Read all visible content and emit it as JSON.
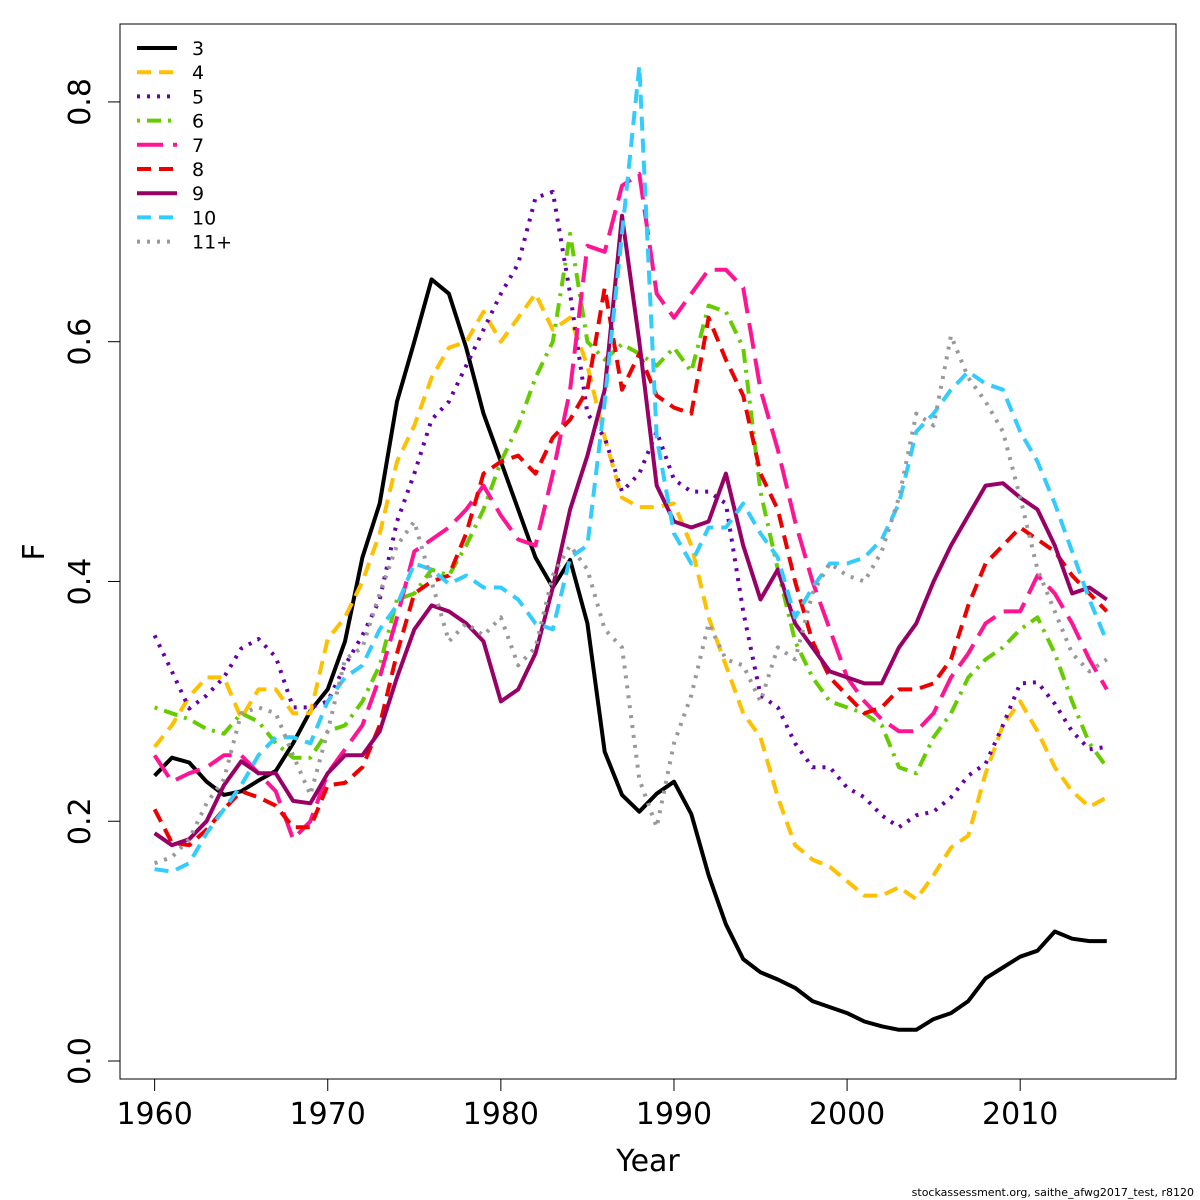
{
  "chart_data": {
    "type": "line",
    "xlabel": "Year",
    "ylabel": "F",
    "xlim": [
      1958,
      2019
    ],
    "ylim": [
      -0.015,
      0.865
    ],
    "x_ticks": [
      1960,
      1970,
      1980,
      1990,
      2000,
      2010
    ],
    "y_ticks": [
      0.0,
      0.2,
      0.4,
      0.6,
      0.8
    ],
    "x_tick_labels": [
      "1960",
      "1970",
      "1980",
      "1990",
      "2000",
      "2010"
    ],
    "y_tick_labels": [
      "0.0",
      "0.2",
      "0.4",
      "0.6",
      "0.8"
    ],
    "legend_position": "top-left",
    "grid": false,
    "x": [
      1960,
      1961,
      1962,
      1963,
      1964,
      1965,
      1966,
      1967,
      1968,
      1969,
      1970,
      1971,
      1972,
      1973,
      1974,
      1975,
      1976,
      1977,
      1978,
      1979,
      1980,
      1981,
      1982,
      1983,
      1984,
      1985,
      1986,
      1987,
      1988,
      1989,
      1990,
      1991,
      1992,
      1993,
      1994,
      1995,
      1996,
      1997,
      1998,
      1999,
      2000,
      2001,
      2002,
      2003,
      2004,
      2005,
      2006,
      2007,
      2008,
      2009,
      2010,
      2011,
      2012,
      2013,
      2014,
      2015
    ],
    "series": [
      {
        "name": "3",
        "color": "#000000",
        "dash": "solid",
        "values": [
          0.238,
          0.253,
          0.249,
          0.233,
          0.222,
          0.225,
          0.234,
          0.242,
          0.265,
          0.292,
          0.31,
          0.35,
          0.42,
          0.465,
          0.55,
          0.6,
          0.652,
          0.64,
          0.595,
          0.54,
          0.5,
          0.46,
          0.42,
          0.395,
          0.418,
          0.365,
          0.258,
          0.222,
          0.208,
          0.223,
          0.233,
          0.206,
          0.155,
          0.114,
          0.085,
          0.074,
          0.068,
          0.061,
          0.05,
          0.045,
          0.04,
          0.033,
          0.029,
          0.026,
          0.026,
          0.035,
          0.04,
          0.05,
          0.069,
          0.078,
          0.087,
          0.092,
          0.108,
          0.102,
          0.1,
          0.1
        ]
      },
      {
        "name": "4",
        "color": "#FFC000",
        "dash": "dashed",
        "values": [
          0.262,
          0.28,
          0.304,
          0.32,
          0.32,
          0.286,
          0.31,
          0.31,
          0.29,
          0.29,
          0.352,
          0.37,
          0.4,
          0.44,
          0.5,
          0.53,
          0.57,
          0.595,
          0.6,
          0.625,
          0.6,
          0.62,
          0.64,
          0.61,
          0.62,
          0.58,
          0.52,
          0.47,
          0.462,
          0.462,
          0.465,
          0.43,
          0.37,
          0.33,
          0.29,
          0.27,
          0.22,
          0.18,
          0.168,
          0.162,
          0.15,
          0.138,
          0.138,
          0.145,
          0.135,
          0.155,
          0.178,
          0.188,
          0.24,
          0.28,
          0.3,
          0.275,
          0.245,
          0.225,
          0.212,
          0.22
        ]
      },
      {
        "name": "5",
        "color": "#6600AA",
        "dash": "dotted",
        "values": [
          0.355,
          0.325,
          0.294,
          0.305,
          0.32,
          0.344,
          0.352,
          0.337,
          0.295,
          0.295,
          0.3,
          0.33,
          0.355,
          0.385,
          0.45,
          0.49,
          0.535,
          0.55,
          0.58,
          0.61,
          0.64,
          0.665,
          0.72,
          0.725,
          0.64,
          0.54,
          0.52,
          0.475,
          0.49,
          0.525,
          0.485,
          0.475,
          0.475,
          0.465,
          0.375,
          0.305,
          0.295,
          0.265,
          0.245,
          0.245,
          0.228,
          0.22,
          0.205,
          0.195,
          0.205,
          0.208,
          0.22,
          0.238,
          0.248,
          0.28,
          0.315,
          0.316,
          0.298,
          0.275,
          0.26,
          0.262
        ]
      },
      {
        "name": "6",
        "color": "#66CC00",
        "dash": "dashdot",
        "values": [
          0.295,
          0.29,
          0.285,
          0.277,
          0.273,
          0.29,
          0.283,
          0.265,
          0.253,
          0.253,
          0.275,
          0.28,
          0.3,
          0.33,
          0.385,
          0.39,
          0.41,
          0.405,
          0.43,
          0.46,
          0.5,
          0.53,
          0.57,
          0.6,
          0.69,
          0.6,
          0.585,
          0.598,
          0.59,
          0.58,
          0.595,
          0.575,
          0.63,
          0.625,
          0.595,
          0.475,
          0.41,
          0.35,
          0.32,
          0.3,
          0.295,
          0.29,
          0.28,
          0.245,
          0.24,
          0.27,
          0.29,
          0.32,
          0.335,
          0.345,
          0.36,
          0.37,
          0.34,
          0.3,
          0.265,
          0.245
        ]
      },
      {
        "name": "7",
        "color": "#FF1493",
        "dash": "longdash",
        "values": [
          0.255,
          0.233,
          0.24,
          0.245,
          0.255,
          0.255,
          0.24,
          0.225,
          0.185,
          0.2,
          0.24,
          0.26,
          0.28,
          0.32,
          0.37,
          0.425,
          0.435,
          0.445,
          0.46,
          0.48,
          0.455,
          0.435,
          0.43,
          0.49,
          0.56,
          0.68,
          0.675,
          0.73,
          0.74,
          0.64,
          0.62,
          0.64,
          0.66,
          0.66,
          0.645,
          0.56,
          0.51,
          0.45,
          0.4,
          0.36,
          0.32,
          0.3,
          0.285,
          0.275,
          0.275,
          0.29,
          0.32,
          0.34,
          0.365,
          0.375,
          0.375,
          0.405,
          0.39,
          0.365,
          0.335,
          0.31
        ]
      },
      {
        "name": "8",
        "color": "#EE0000",
        "dash": "dashed",
        "values": [
          0.21,
          0.182,
          0.18,
          0.193,
          0.21,
          0.225,
          0.22,
          0.213,
          0.195,
          0.195,
          0.23,
          0.232,
          0.245,
          0.28,
          0.34,
          0.39,
          0.4,
          0.405,
          0.44,
          0.49,
          0.5,
          0.505,
          0.49,
          0.52,
          0.535,
          0.56,
          0.645,
          0.56,
          0.59,
          0.555,
          0.545,
          0.54,
          0.62,
          0.585,
          0.555,
          0.49,
          0.46,
          0.4,
          0.35,
          0.32,
          0.305,
          0.29,
          0.295,
          0.31,
          0.31,
          0.315,
          0.335,
          0.38,
          0.415,
          0.43,
          0.445,
          0.435,
          0.425,
          0.405,
          0.39,
          0.375
        ]
      },
      {
        "name": "9",
        "color": "#990066",
        "dash": "solid",
        "values": [
          0.19,
          0.18,
          0.185,
          0.2,
          0.23,
          0.25,
          0.24,
          0.24,
          0.217,
          0.215,
          0.24,
          0.255,
          0.255,
          0.275,
          0.32,
          0.36,
          0.38,
          0.375,
          0.365,
          0.35,
          0.3,
          0.31,
          0.34,
          0.395,
          0.46,
          0.505,
          0.56,
          0.705,
          0.6,
          0.48,
          0.45,
          0.445,
          0.45,
          0.49,
          0.43,
          0.385,
          0.41,
          0.365,
          0.345,
          0.325,
          0.32,
          0.315,
          0.315,
          0.345,
          0.365,
          0.4,
          0.43,
          0.455,
          0.48,
          0.482,
          0.47,
          0.46,
          0.43,
          0.39,
          0.395,
          0.385
        ]
      },
      {
        "name": "10",
        "color": "#33CCFF",
        "dash": "dashed",
        "values": [
          0.16,
          0.158,
          0.165,
          0.19,
          0.21,
          0.23,
          0.255,
          0.27,
          0.27,
          0.265,
          0.3,
          0.32,
          0.33,
          0.36,
          0.38,
          0.415,
          0.41,
          0.398,
          0.405,
          0.395,
          0.395,
          0.385,
          0.365,
          0.36,
          0.42,
          0.43,
          0.55,
          0.69,
          0.83,
          0.52,
          0.44,
          0.415,
          0.445,
          0.445,
          0.465,
          0.44,
          0.42,
          0.37,
          0.395,
          0.415,
          0.415,
          0.42,
          0.435,
          0.465,
          0.525,
          0.54,
          0.56,
          0.575,
          0.565,
          0.56,
          0.525,
          0.5,
          0.465,
          0.425,
          0.385,
          0.35
        ]
      },
      {
        "name": "11+",
        "color": "#999999",
        "dash": "dotted",
        "values": [
          0.165,
          0.17,
          0.185,
          0.215,
          0.235,
          0.29,
          0.295,
          0.29,
          0.255,
          0.222,
          0.275,
          0.335,
          0.345,
          0.39,
          0.43,
          0.45,
          0.4,
          0.35,
          0.365,
          0.355,
          0.37,
          0.33,
          0.345,
          0.405,
          0.43,
          0.41,
          0.36,
          0.345,
          0.235,
          0.195,
          0.265,
          0.305,
          0.365,
          0.335,
          0.33,
          0.3,
          0.345,
          0.335,
          0.39,
          0.415,
          0.405,
          0.4,
          0.425,
          0.47,
          0.54,
          0.53,
          0.605,
          0.57,
          0.55,
          0.525,
          0.47,
          0.41,
          0.375,
          0.34,
          0.325,
          0.335
        ]
      }
    ]
  },
  "credit": "stockassessment.org, saithe_afwg2017_test, r8120"
}
